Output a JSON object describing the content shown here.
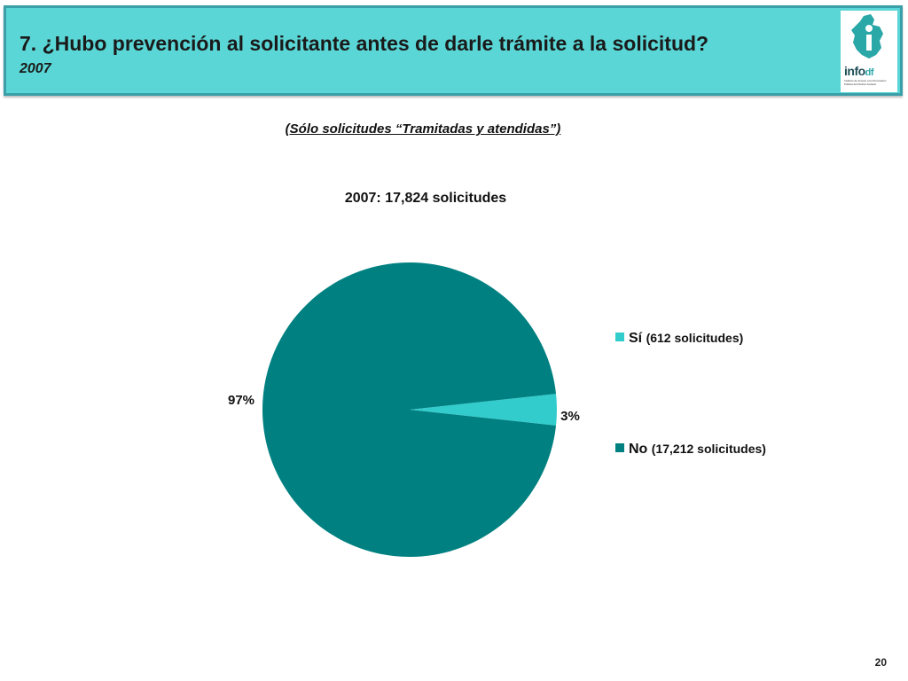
{
  "header": {
    "title": "7. ¿Hubo prevención al solicitante antes de darle trámite a la solicitud?",
    "year": "2007",
    "logo_text": "info",
    "logo_suffix": "df",
    "logo_caption": "Instituto de Acceso a la Información Pública del Distrito Federal"
  },
  "subtitle": "(Sólo solicitudes “Tramitadas y atendidas”)",
  "page_number": "20",
  "chart_data": {
    "type": "pie",
    "title": "2007: 17,824 solicitudes",
    "legend_position": "right",
    "slices": [
      {
        "label": "Sí",
        "detail": "(612 solicitudes)",
        "value": 612,
        "percent_label": "3%",
        "color": "#33cccc"
      },
      {
        "label": "No",
        "detail": "(17,212 solicitudes)",
        "value": 17212,
        "percent_label": "97%",
        "color": "#008080"
      }
    ]
  }
}
